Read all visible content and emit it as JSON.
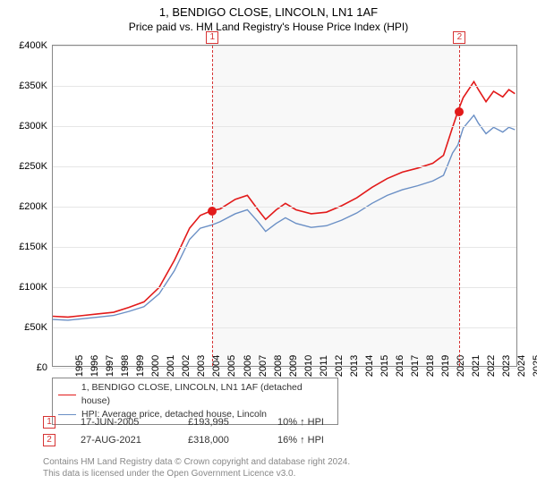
{
  "title": "1, BENDIGO CLOSE, LINCOLN, LN1 1AF",
  "subtitle": "Price paid vs. HM Land Registry's House Price Index (HPI)",
  "chart": {
    "type": "line",
    "background_color": "#ffffff",
    "shaded_color": "#f8f8f8",
    "grid_color": "#e6e6e6",
    "border_color": "#888888",
    "ylim": [
      0,
      400000
    ],
    "ytick_step": 50000,
    "yticks": [
      "£0",
      "£50K",
      "£100K",
      "£150K",
      "£200K",
      "£250K",
      "£300K",
      "£350K",
      "£400K"
    ],
    "xlim": [
      1995,
      2025.5
    ],
    "xticks": [
      1995,
      1996,
      1997,
      1998,
      1999,
      2000,
      2001,
      2002,
      2003,
      2004,
      2005,
      2006,
      2007,
      2008,
      2009,
      2010,
      2011,
      2012,
      2013,
      2014,
      2015,
      2016,
      2017,
      2018,
      2019,
      2020,
      2021,
      2022,
      2023,
      2024,
      2025
    ],
    "dashed_color": "#d63333",
    "markers": [
      {
        "label": "1",
        "x": 2005.46
      },
      {
        "label": "2",
        "x": 2021.65
      }
    ],
    "shade_start": 2005.46,
    "shade_end": 2021.65,
    "series": [
      {
        "name": "1, BENDIGO CLOSE, LINCOLN, LN1 1AF (detached house)",
        "color": "#e21a1a",
        "width": 1.6,
        "data": [
          [
            1995,
            62000
          ],
          [
            1996,
            61000
          ],
          [
            1997,
            63000
          ],
          [
            1998,
            65000
          ],
          [
            1999,
            67000
          ],
          [
            2000,
            73000
          ],
          [
            2001,
            80000
          ],
          [
            2002,
            98000
          ],
          [
            2003,
            132000
          ],
          [
            2004,
            172000
          ],
          [
            2004.7,
            188000
          ],
          [
            2005.46,
            193995
          ],
          [
            2006,
            196000
          ],
          [
            2007,
            208000
          ],
          [
            2007.8,
            213000
          ],
          [
            2008.5,
            195000
          ],
          [
            2009,
            183000
          ],
          [
            2009.7,
            195000
          ],
          [
            2010.3,
            203000
          ],
          [
            2011,
            195000
          ],
          [
            2012,
            190000
          ],
          [
            2013,
            192000
          ],
          [
            2014,
            200000
          ],
          [
            2015,
            210000
          ],
          [
            2016,
            223000
          ],
          [
            2017,
            234000
          ],
          [
            2018,
            242000
          ],
          [
            2019,
            247000
          ],
          [
            2020,
            253000
          ],
          [
            2020.7,
            263000
          ],
          [
            2021.3,
            298000
          ],
          [
            2021.65,
            318000
          ],
          [
            2022,
            335000
          ],
          [
            2022.7,
            355000
          ],
          [
            2023,
            345000
          ],
          [
            2023.5,
            330000
          ],
          [
            2024,
            343000
          ],
          [
            2024.6,
            336000
          ],
          [
            2025,
            345000
          ],
          [
            2025.4,
            340000
          ]
        ]
      },
      {
        "name": "HPI: Average price, detached house, Lincoln",
        "color": "#6a8fc5",
        "width": 1.4,
        "data": [
          [
            1995,
            58000
          ],
          [
            1996,
            57000
          ],
          [
            1997,
            59000
          ],
          [
            1998,
            61000
          ],
          [
            1999,
            63000
          ],
          [
            2000,
            68000
          ],
          [
            2001,
            74000
          ],
          [
            2002,
            90000
          ],
          [
            2003,
            119000
          ],
          [
            2004,
            158000
          ],
          [
            2004.7,
            172000
          ],
          [
            2005.46,
            176000
          ],
          [
            2006,
            180000
          ],
          [
            2007,
            190000
          ],
          [
            2007.8,
            195000
          ],
          [
            2008.5,
            180000
          ],
          [
            2009,
            168000
          ],
          [
            2009.7,
            178000
          ],
          [
            2010.3,
            185000
          ],
          [
            2011,
            178000
          ],
          [
            2012,
            173000
          ],
          [
            2013,
            175000
          ],
          [
            2014,
            182000
          ],
          [
            2015,
            191000
          ],
          [
            2016,
            203000
          ],
          [
            2017,
            213000
          ],
          [
            2018,
            220000
          ],
          [
            2019,
            225000
          ],
          [
            2020,
            231000
          ],
          [
            2020.7,
            238000
          ],
          [
            2021.3,
            266000
          ],
          [
            2021.65,
            276000
          ],
          [
            2022,
            297000
          ],
          [
            2022.7,
            313000
          ],
          [
            2023,
            303000
          ],
          [
            2023.5,
            290000
          ],
          [
            2024,
            298000
          ],
          [
            2024.6,
            292000
          ],
          [
            2025,
            298000
          ],
          [
            2025.4,
            295000
          ]
        ]
      }
    ],
    "points": [
      {
        "x": 2005.46,
        "y": 193995,
        "color": "#e21a1a"
      },
      {
        "x": 2021.65,
        "y": 318000,
        "color": "#e21a1a"
      }
    ]
  },
  "legend": {
    "rows": [
      {
        "color": "#e21a1a",
        "label": "1, BENDIGO CLOSE, LINCOLN, LN1 1AF (detached house)"
      },
      {
        "color": "#6a8fc5",
        "label": "HPI: Average price, detached house, Lincoln"
      }
    ]
  },
  "events": [
    {
      "marker": "1",
      "date": "17-JUN-2005",
      "price": "£193,995",
      "delta": "10% ↑ HPI"
    },
    {
      "marker": "2",
      "date": "27-AUG-2021",
      "price": "£318,000",
      "delta": "16% ↑ HPI"
    }
  ],
  "footer": {
    "line1": "Contains HM Land Registry data © Crown copyright and database right 2024.",
    "line2": "This data is licensed under the Open Government Licence v3.0."
  }
}
